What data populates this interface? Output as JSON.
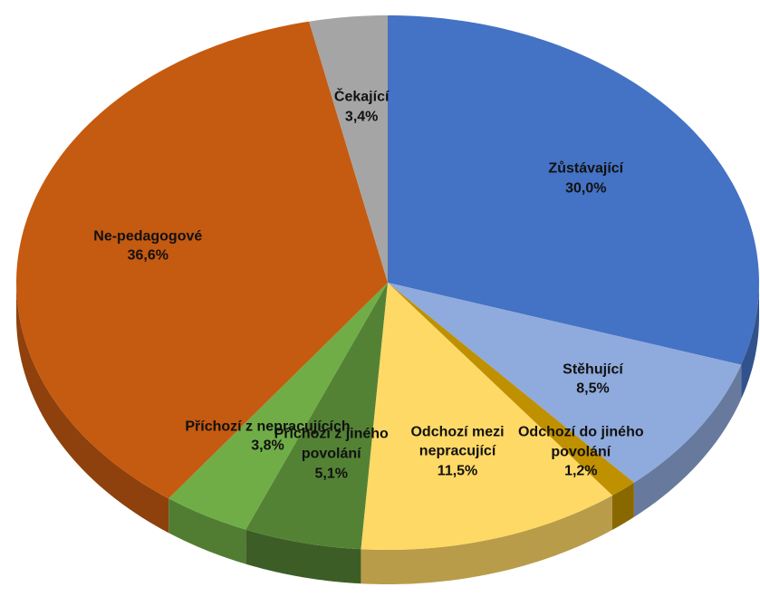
{
  "chart_data": {
    "type": "pie",
    "categories": [
      "Zůstávající",
      "Stěhující",
      "Odchozí do jiného povolání",
      "Odchozí mezi nepracující",
      "Příchozí z jiného povolání",
      "Příchozí z nepracujících",
      "Ne-pedagogové",
      "Čekající"
    ],
    "values": [
      30.0,
      8.5,
      1.2,
      11.5,
      5.1,
      3.8,
      36.6,
      3.4
    ],
    "value_labels": [
      "30,0%",
      "8,5%",
      "1,2%",
      "11,5%",
      "5,1%",
      "3,8%",
      "36,6%",
      "3,4%"
    ],
    "colors": [
      "#4472c4",
      "#8faadc",
      "#bf9000",
      "#ffd966",
      "#548235",
      "#70ad47",
      "#c55a11",
      "#a5a5a5"
    ]
  }
}
